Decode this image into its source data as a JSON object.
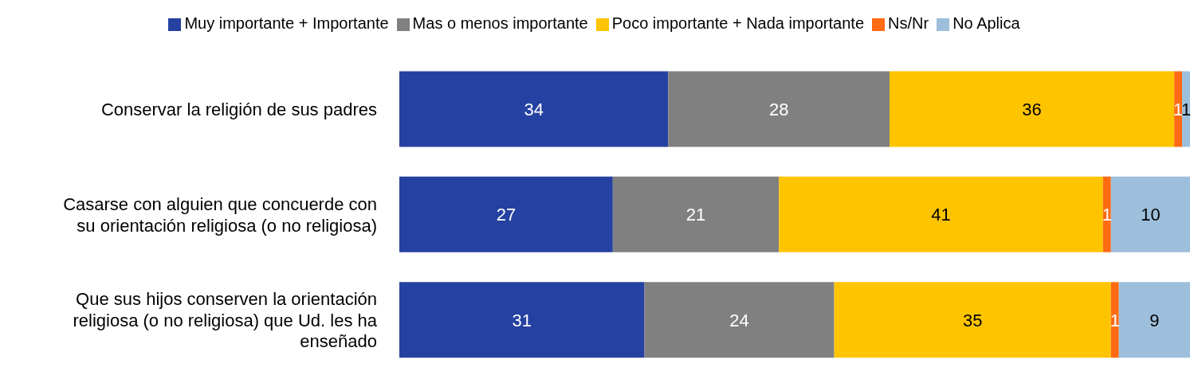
{
  "chart_data": {
    "type": "bar",
    "orientation": "horizontal",
    "stacked": true,
    "data_labels": true,
    "legend": "top",
    "grid": false,
    "categories": [
      "Conservar la religión de sus padres",
      "Casarse con alguien que concuerde con su orientación religiosa (o no religiosa)",
      "Que sus hijos conserven la orientación religiosa (o no religiosa) que Ud. les ha enseñado"
    ],
    "series": [
      {
        "name": "Muy importante + Importante",
        "color": "#2541a1",
        "values": [
          34,
          27,
          31
        ]
      },
      {
        "name": "Mas o menos importante",
        "color": "#808080",
        "values": [
          28,
          21,
          24
        ]
      },
      {
        "name": "Poco importante + Nada importante",
        "color": "#ffc400",
        "values": [
          36,
          41,
          35
        ]
      },
      {
        "name": "Ns/Nr",
        "color": "#ff6a13",
        "values": [
          1,
          1,
          1
        ]
      },
      {
        "name": "No Aplica",
        "color": "#9dbfdc",
        "values": [
          1,
          10,
          9
        ]
      }
    ]
  }
}
